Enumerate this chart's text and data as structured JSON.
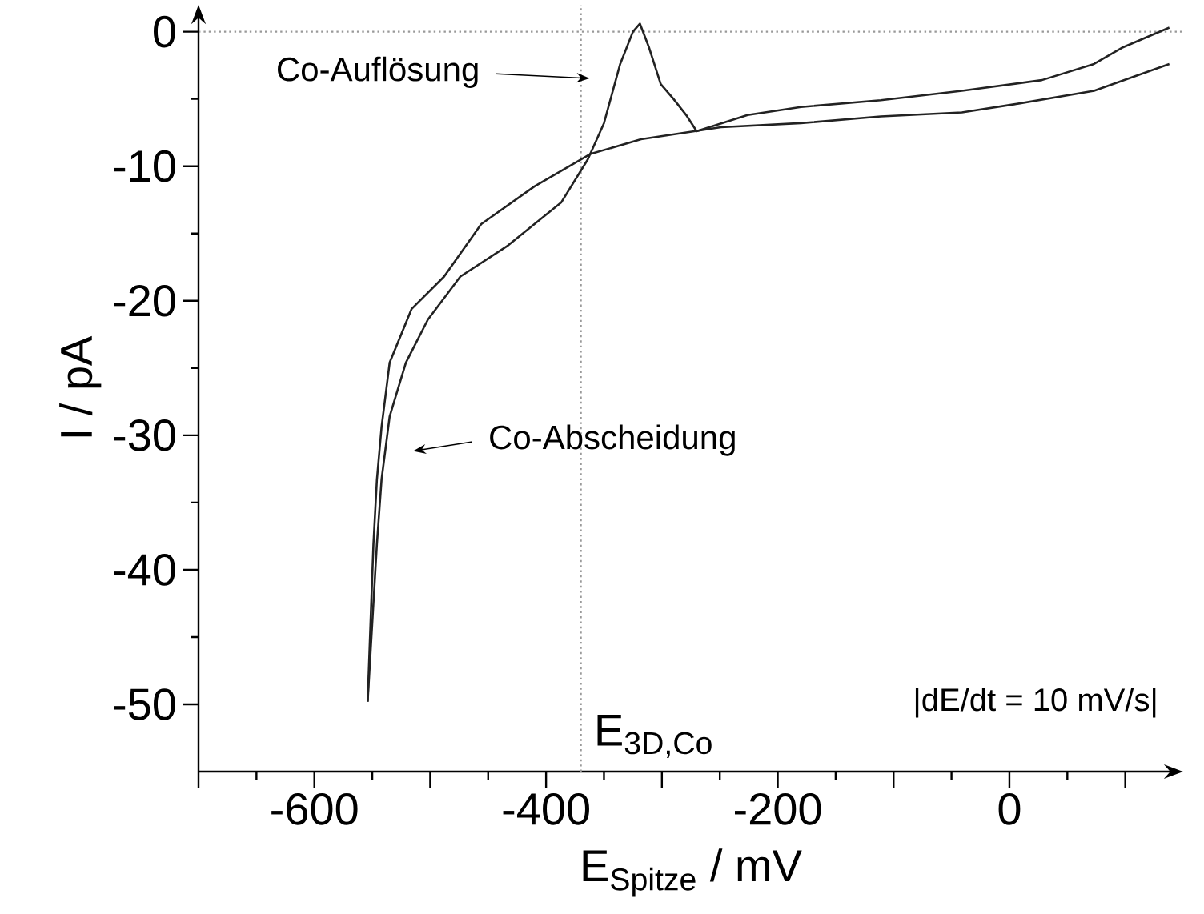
{
  "chart_data": {
    "type": "line",
    "xlabel": "E$_{Spitze}$ / mV",
    "ylabel": "I / pA",
    "xlim": [
      -700,
      150
    ],
    "ylim": [
      -55,
      2
    ],
    "xticks": [
      {
        "value": -700,
        "label": null
      },
      -600,
      {
        "value": -500,
        "label": null
      },
      -400,
      {
        "value": -300,
        "label": null
      },
      -200,
      {
        "value": -100,
        "label": null
      },
      0,
      {
        "value": 100,
        "label": null
      }
    ],
    "yticks": [
      -50,
      -40,
      -30,
      -20,
      -10,
      0
    ],
    "series": [
      {
        "color": "#222222",
        "x": [
          138,
          73,
          4,
          -41,
          -111,
          -180,
          -249,
          -318,
          -362,
          -410,
          -456,
          -488,
          -516,
          -535,
          -542,
          -546,
          -549,
          -554
        ],
        "values": [
          -2.4,
          -4.4,
          -5.4,
          -6.0,
          -6.3,
          -6.8,
          -7.1,
          -8.0,
          -9.1,
          -11.5,
          -14.3,
          -18.2,
          -20.6,
          -24.6,
          -29.4,
          -33.3,
          -38.1,
          -49.8
        ]
      },
      {
        "color": "#222222",
        "x": [
          -554,
          -546,
          -542,
          -535,
          -521,
          -502,
          -474,
          -433,
          -387,
          -364,
          -350,
          -336,
          -325,
          -319,
          -311,
          -301,
          -290,
          -279,
          -270,
          -226,
          -180,
          -111,
          -41,
          28,
          73,
          97,
          138
        ],
        "values": [
          -49.8,
          -38.1,
          -33.3,
          -28.6,
          -24.6,
          -21.4,
          -18.2,
          -15.9,
          -12.7,
          -9.5,
          -6.8,
          -2.4,
          0,
          0.6,
          -1.2,
          -3.9,
          -5.0,
          -6.2,
          -7.4,
          -6.2,
          -5.6,
          -5.1,
          -4.4,
          -3.6,
          -2.4,
          -1.2,
          0.3
        ]
      }
    ],
    "ref_lines": [
      {
        "axis": "y",
        "value": 0,
        "color": "#999999",
        "line_style": "dotted"
      },
      {
        "axis": "x",
        "value": -370,
        "label": "E$_{3D,Co}$",
        "color": "#999999",
        "line_style": "dotted"
      }
    ],
    "annotations": [
      "Co-Auflösung",
      "Co-Abscheidung",
      "|dE/dt = 10 mV/s|"
    ]
  }
}
